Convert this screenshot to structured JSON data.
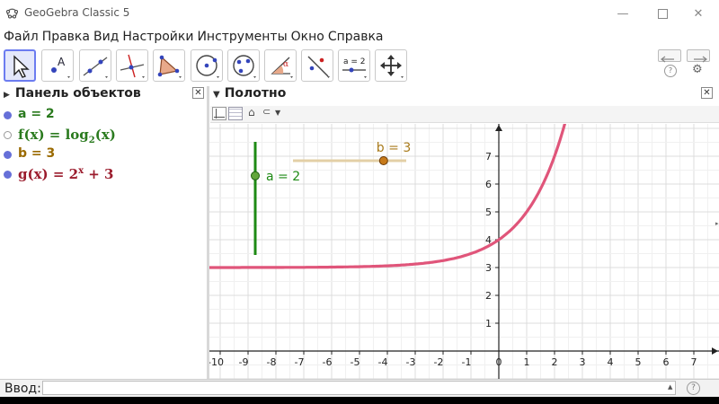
{
  "window": {
    "title": "GeoGebra Classic 5"
  },
  "menu": [
    "Файл",
    "Правка",
    "Вид",
    "Настройки",
    "Инструменты",
    "Окно",
    "Справка"
  ],
  "toolbar": {
    "tools": [
      "move-tool",
      "point-tool",
      "line-tool",
      "perpendicular-line-tool",
      "polygon-tool",
      "circle-tool",
      "conic-tool",
      "angle-tool",
      "reflect-tool",
      "slider-tool",
      "move-view-tool"
    ],
    "slider_tool_label": "a = 2"
  },
  "algebra": {
    "title": "Панель объектов",
    "items": [
      {
        "text": "a = 2",
        "color": "#2a7a1e"
      },
      {
        "f": "f(x) = log",
        "sub": "2",
        "tail": "(x)",
        "color": "#2a7a1e"
      },
      {
        "text": "b = 3",
        "color": "#9a6a00"
      },
      {
        "f": "g(x) = 2",
        "sup": "x",
        "tail": " + 3",
        "color": "#9b1c2d"
      }
    ]
  },
  "graphics": {
    "title": "Полотно"
  },
  "sliders": [
    {
      "name": "a",
      "label": "a = 2",
      "value": 2,
      "min": -5,
      "max": 5,
      "orientation": "vertical",
      "color": "#1e8a14"
    },
    {
      "name": "b",
      "label": "b = 3",
      "value": 3,
      "min": -5,
      "max": 5,
      "orientation": "horizontal",
      "color": "#c77a1a"
    }
  ],
  "axes": {
    "x_ticks": [
      "-10",
      "-9",
      "-8",
      "-7",
      "-6",
      "-5",
      "-4",
      "-3",
      "-2",
      "-1",
      "0",
      "1",
      "2",
      "3",
      "4",
      "5",
      "6",
      "7"
    ],
    "y_ticks": [
      "1",
      "2",
      "3",
      "4",
      "5",
      "6",
      "7"
    ]
  },
  "input": {
    "label": "Ввод:",
    "value": ""
  },
  "colors": {
    "curve": "#e0557a",
    "accent": "#6c7cf0"
  }
}
